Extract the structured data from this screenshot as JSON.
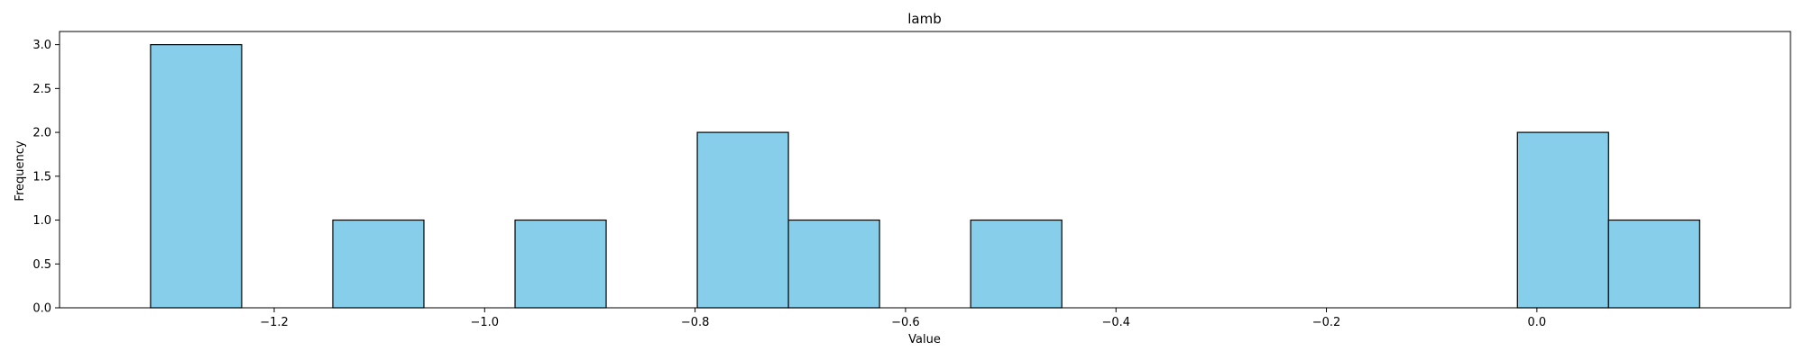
{
  "chart_data": {
    "type": "bar",
    "title": "lamb",
    "xlabel": "Value",
    "ylabel": "Frequency",
    "bin_width": 0.0866,
    "bins": [
      {
        "start": -1.3175,
        "end": -1.2309,
        "count": 3
      },
      {
        "start": -1.2309,
        "end": -1.1443,
        "count": 0
      },
      {
        "start": -1.1443,
        "end": -1.0577,
        "count": 1
      },
      {
        "start": -1.0577,
        "end": -0.9711,
        "count": 0
      },
      {
        "start": -0.9711,
        "end": -0.8845,
        "count": 1
      },
      {
        "start": -0.8845,
        "end": -0.7979,
        "count": 0
      },
      {
        "start": -0.7979,
        "end": -0.7113,
        "count": 2
      },
      {
        "start": -0.7113,
        "end": -0.6247,
        "count": 1
      },
      {
        "start": -0.6247,
        "end": -0.5381,
        "count": 0
      },
      {
        "start": -0.5381,
        "end": -0.4515,
        "count": 1
      },
      {
        "start": -0.4515,
        "end": -0.3649,
        "count": 0
      },
      {
        "start": -0.3649,
        "end": -0.2783,
        "count": 0
      },
      {
        "start": -0.2783,
        "end": -0.1917,
        "count": 0
      },
      {
        "start": -0.1917,
        "end": -0.1051,
        "count": 0
      },
      {
        "start": -0.1051,
        "end": -0.0185,
        "count": 0
      },
      {
        "start": -0.0185,
        "end": 0.0681,
        "count": 2
      },
      {
        "start": 0.0681,
        "end": 0.1547,
        "count": 1
      }
    ],
    "xlim": [
      -1.404,
      0.241
    ],
    "ylim": [
      0,
      3.15
    ],
    "xticks": [
      -1.2,
      -1.0,
      -0.8,
      -0.6,
      -0.4,
      -0.2,
      0.0
    ],
    "xtick_labels": [
      "−1.2",
      "−1.0",
      "−0.8",
      "−0.6",
      "−0.4",
      "−0.2",
      "0.0"
    ],
    "yticks": [
      0.0,
      0.5,
      1.0,
      1.5,
      2.0,
      2.5,
      3.0
    ],
    "ytick_labels": [
      "0.0",
      "0.5",
      "1.0",
      "1.5",
      "2.0",
      "2.5",
      "3.0"
    ],
    "grid": false,
    "legend": "none",
    "bar_color": "#87CEEB",
    "edge_color": "#000000"
  }
}
